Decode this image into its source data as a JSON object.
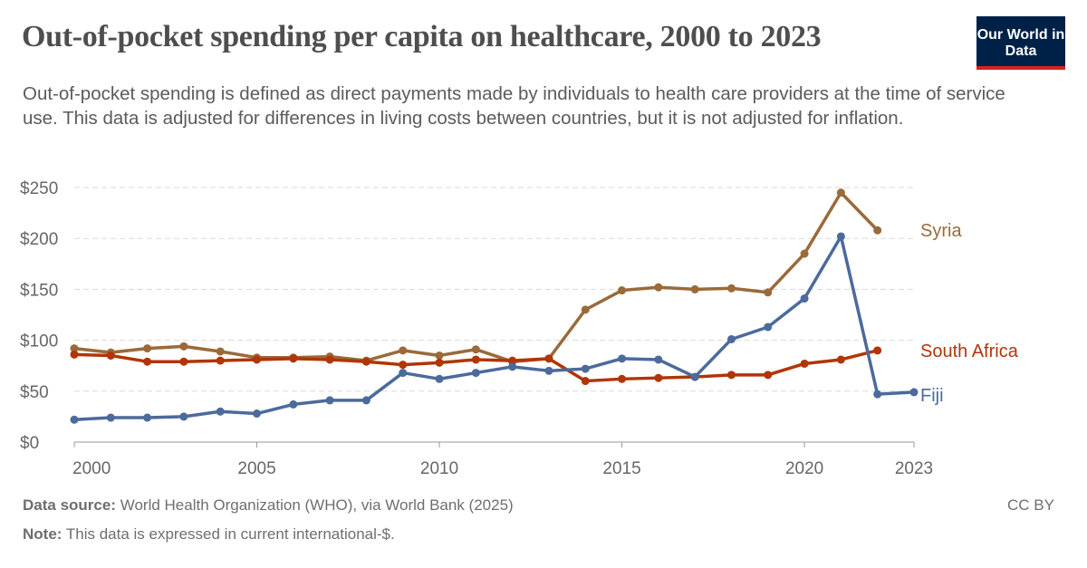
{
  "header": {
    "title": "Out-of-pocket spending per capita on healthcare, 2000 to 2023",
    "subtitle": "Out-of-pocket spending is defined as direct payments made by individuals to health care providers at the time of service use. This data is adjusted for differences in living costs between countries, but it is not adjusted for inflation.",
    "logo": "Our World in Data"
  },
  "footer": {
    "source_label": "Data source:",
    "source": "World Health Organization (WHO), via World Bank (2025)",
    "note_label": "Note:",
    "note": "This data is expressed in current international-$.",
    "license": "CC BY"
  },
  "chart_data": {
    "type": "line",
    "title": "Out-of-pocket spending per capita on healthcare, 2000 to 2023",
    "ylim": [
      0,
      250
    ],
    "xlim": [
      2000,
      2023
    ],
    "grid": "horizontal dashed",
    "legend": "inline labels at line ends",
    "x_ticks": [
      "2000",
      "2005",
      "2010",
      "2015",
      "2020",
      "2023"
    ],
    "y_ticks": [
      "$0",
      "$50",
      "$100",
      "$150",
      "$200",
      "$250"
    ],
    "series": [
      {
        "name": "Syria",
        "color": "#9a6a3a",
        "x": [
          2000,
          2001,
          2002,
          2003,
          2004,
          2005,
          2006,
          2007,
          2008,
          2009,
          2010,
          2011,
          2012,
          2013,
          2014,
          2015,
          2016,
          2017,
          2018,
          2019,
          2020,
          2021,
          2022
        ],
        "values": [
          92,
          88,
          92,
          94,
          89,
          83,
          83,
          84,
          80,
          90,
          85,
          91,
          79,
          82,
          130,
          149,
          152,
          150,
          151,
          147,
          185,
          245,
          208
        ]
      },
      {
        "name": "South Africa",
        "color": "#b13507",
        "x": [
          2000,
          2001,
          2002,
          2003,
          2004,
          2005,
          2006,
          2007,
          2008,
          2009,
          2010,
          2011,
          2012,
          2013,
          2014,
          2015,
          2016,
          2017,
          2018,
          2019,
          2020,
          2021,
          2022
        ],
        "values": [
          86,
          85,
          79,
          79,
          80,
          81,
          82,
          81,
          79,
          76,
          78,
          81,
          80,
          82,
          60,
          62,
          63,
          64,
          66,
          66,
          77,
          81,
          90
        ]
      },
      {
        "name": "Fiji",
        "color": "#4c6a9c",
        "x": [
          2000,
          2001,
          2002,
          2003,
          2004,
          2005,
          2006,
          2007,
          2008,
          2009,
          2010,
          2011,
          2012,
          2013,
          2014,
          2015,
          2016,
          2017,
          2018,
          2019,
          2020,
          2021,
          2022,
          2023
        ],
        "values": [
          22,
          24,
          24,
          25,
          30,
          28,
          37,
          41,
          41,
          68,
          62,
          68,
          74,
          70,
          72,
          82,
          81,
          64,
          101,
          113,
          141,
          202,
          47,
          49
        ]
      }
    ]
  }
}
